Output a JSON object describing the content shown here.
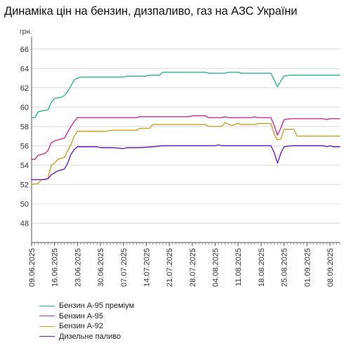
{
  "title": "Динаміка цін на бензин, дизпаливо, газ на АЗС України",
  "chart_data": {
    "type": "line",
    "title": "Динаміка цін на бензин, дизпаливо, газ на АЗС України",
    "ylabel": "грн.",
    "xlabel": "",
    "ylim": [
      46,
      67
    ],
    "yticks": [
      48,
      50,
      52,
      54,
      56,
      58,
      60,
      62,
      64,
      66
    ],
    "xlim": [
      "09.06.2025",
      "11.09.2025"
    ],
    "xticks": [
      "09.06.2025",
      "16.06.2025",
      "23.06.2025",
      "30.06.2025",
      "07.07.2025",
      "14.07.2025",
      "21.07.2025",
      "28.07.2025",
      "04.08.2025",
      "11.08.2025",
      "18.08.2025",
      "25.08.2025",
      "01.09.2025",
      "08.09.2025"
    ],
    "grid": "horizontal",
    "legend_position": "bottom-left",
    "series": [
      {
        "name": "Бензин А-95 преміум",
        "color": "#2bb58e",
        "points": [
          [
            "09.06.2025",
            58.9
          ],
          [
            "10.06.2025",
            58.9
          ],
          [
            "11.06.2025",
            59.5
          ],
          [
            "12.06.2025",
            59.6
          ],
          [
            "14.06.2025",
            59.7
          ],
          [
            "15.06.2025",
            60.5
          ],
          [
            "16.06.2025",
            60.9
          ],
          [
            "18.06.2025",
            61.0
          ],
          [
            "19.06.2025",
            61.2
          ],
          [
            "20.06.2025",
            61.6
          ],
          [
            "21.06.2025",
            62.2
          ],
          [
            "22.06.2025",
            62.8
          ],
          [
            "23.06.2025",
            63.0
          ],
          [
            "24.06.2025",
            63.1
          ],
          [
            "07.07.2025",
            63.1
          ],
          [
            "08.07.2025",
            63.2
          ],
          [
            "14.07.2025",
            63.2
          ],
          [
            "15.07.2025",
            63.3
          ],
          [
            "18.07.2025",
            63.3
          ],
          [
            "19.07.2025",
            63.6
          ],
          [
            "01.08.2025",
            63.6
          ],
          [
            "02.08.2025",
            63.5
          ],
          [
            "07.08.2025",
            63.5
          ],
          [
            "08.08.2025",
            63.6
          ],
          [
            "11.08.2025",
            63.6
          ],
          [
            "12.08.2025",
            63.5
          ],
          [
            "21.08.2025",
            63.5
          ],
          [
            "22.08.2025",
            62.8
          ],
          [
            "23.08.2025",
            62.1
          ],
          [
            "24.08.2025",
            62.7
          ],
          [
            "25.08.2025",
            63.2
          ],
          [
            "27.08.2025",
            63.3
          ],
          [
            "11.09.2025",
            63.3
          ]
        ]
      },
      {
        "name": "Бензин А-95",
        "color": "#cc2f8d",
        "points": [
          [
            "09.06.2025",
            54.6
          ],
          [
            "10.06.2025",
            54.6
          ],
          [
            "11.06.2025",
            55.0
          ],
          [
            "13.06.2025",
            55.2
          ],
          [
            "14.06.2025",
            55.5
          ],
          [
            "15.06.2025",
            56.3
          ],
          [
            "16.06.2025",
            56.5
          ],
          [
            "17.06.2025",
            56.6
          ],
          [
            "19.06.2025",
            56.8
          ],
          [
            "20.06.2025",
            57.4
          ],
          [
            "21.06.2025",
            58.0
          ],
          [
            "22.06.2025",
            58.5
          ],
          [
            "23.06.2025",
            58.9
          ],
          [
            "11.07.2025",
            58.9
          ],
          [
            "12.07.2025",
            59.0
          ],
          [
            "27.07.2025",
            59.0
          ],
          [
            "28.07.2025",
            59.1
          ],
          [
            "01.08.2025",
            59.1
          ],
          [
            "02.08.2025",
            58.9
          ],
          [
            "06.08.2025",
            58.9
          ],
          [
            "07.08.2025",
            59.0
          ],
          [
            "08.08.2025",
            58.9
          ],
          [
            "15.08.2025",
            58.9
          ],
          [
            "16.08.2025",
            59.0
          ],
          [
            "17.08.2025",
            58.9
          ],
          [
            "21.08.2025",
            58.9
          ],
          [
            "22.08.2025",
            58.1
          ],
          [
            "23.08.2025",
            57.1
          ],
          [
            "24.08.2025",
            57.8
          ],
          [
            "25.08.2025",
            58.7
          ],
          [
            "27.08.2025",
            58.8
          ],
          [
            "06.09.2025",
            58.8
          ],
          [
            "07.09.2025",
            58.7
          ],
          [
            "08.09.2025",
            58.8
          ],
          [
            "11.09.2025",
            58.8
          ]
        ]
      },
      {
        "name": "Бензин А-92",
        "color": "#c9a227",
        "points": [
          [
            "09.06.2025",
            52.0
          ],
          [
            "11.06.2025",
            52.1
          ],
          [
            "12.06.2025",
            52.5
          ],
          [
            "14.06.2025",
            52.6
          ],
          [
            "15.06.2025",
            54.0
          ],
          [
            "16.06.2025",
            54.2
          ],
          [
            "17.06.2025",
            54.6
          ],
          [
            "19.06.2025",
            54.8
          ],
          [
            "20.06.2025",
            55.5
          ],
          [
            "21.06.2025",
            56.1
          ],
          [
            "22.06.2025",
            57.0
          ],
          [
            "23.06.2025",
            57.5
          ],
          [
            "02.07.2025",
            57.5
          ],
          [
            "03.07.2025",
            57.6
          ],
          [
            "11.07.2025",
            57.6
          ],
          [
            "12.07.2025",
            57.8
          ],
          [
            "15.07.2025",
            57.8
          ],
          [
            "16.07.2025",
            58.2
          ],
          [
            "01.08.2025",
            58.2
          ],
          [
            "02.08.2025",
            58.0
          ],
          [
            "06.08.2025",
            58.0
          ],
          [
            "07.08.2025",
            58.4
          ],
          [
            "09.08.2025",
            58.1
          ],
          [
            "11.08.2025",
            58.3
          ],
          [
            "12.08.2025",
            58.2
          ],
          [
            "16.08.2025",
            58.2
          ],
          [
            "17.08.2025",
            58.3
          ],
          [
            "21.08.2025",
            58.3
          ],
          [
            "22.08.2025",
            57.2
          ],
          [
            "23.08.2025",
            56.6
          ],
          [
            "24.08.2025",
            56.7
          ],
          [
            "25.08.2025",
            57.7
          ],
          [
            "28.08.2025",
            57.7
          ],
          [
            "29.08.2025",
            57.0
          ],
          [
            "11.09.2025",
            57.0
          ]
        ]
      },
      {
        "name": "Дизельне паливо",
        "color": "#6a1fc4",
        "points": [
          [
            "09.06.2025",
            52.5
          ],
          [
            "13.06.2025",
            52.5
          ],
          [
            "14.06.2025",
            52.6
          ],
          [
            "15.06.2025",
            53.0
          ],
          [
            "16.06.2025",
            53.2
          ],
          [
            "17.06.2025",
            53.4
          ],
          [
            "19.06.2025",
            53.6
          ],
          [
            "20.06.2025",
            54.2
          ],
          [
            "21.06.2025",
            55.1
          ],
          [
            "22.06.2025",
            55.6
          ],
          [
            "23.06.2025",
            55.9
          ],
          [
            "29.06.2025",
            55.9
          ],
          [
            "30.06.2025",
            55.8
          ],
          [
            "04.07.2025",
            55.8
          ],
          [
            "07.07.2025",
            55.7
          ],
          [
            "08.07.2025",
            55.8
          ],
          [
            "12.07.2025",
            55.8
          ],
          [
            "16.07.2025",
            55.9
          ],
          [
            "19.07.2025",
            56.0
          ],
          [
            "04.08.2025",
            56.0
          ],
          [
            "05.08.2025",
            56.1
          ],
          [
            "06.08.2025",
            56.0
          ],
          [
            "21.08.2025",
            56.0
          ],
          [
            "22.08.2025",
            55.3
          ],
          [
            "23.08.2025",
            54.2
          ],
          [
            "24.08.2025",
            55.2
          ],
          [
            "25.08.2025",
            55.9
          ],
          [
            "27.08.2025",
            56.0
          ],
          [
            "06.09.2025",
            56.0
          ],
          [
            "07.09.2025",
            55.9
          ],
          [
            "08.09.2025",
            56.0
          ],
          [
            "09.09.2025",
            55.9
          ],
          [
            "11.09.2025",
            55.9
          ]
        ]
      }
    ]
  }
}
